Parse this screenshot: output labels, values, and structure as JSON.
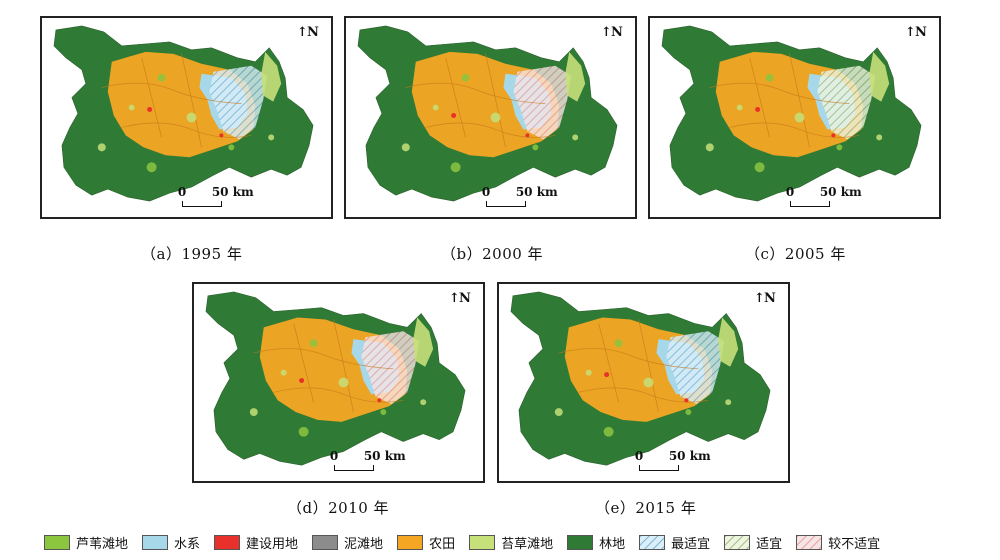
{
  "maps": [
    {
      "caption": "（a）1995 年",
      "north": "N",
      "scale_zero": "0",
      "scale_dist": "50 km"
    },
    {
      "caption": "（b）2000 年",
      "north": "N",
      "scale_zero": "0",
      "scale_dist": "50 km"
    },
    {
      "caption": "（c）2005 年",
      "north": "N",
      "scale_zero": "0",
      "scale_dist": "50 km"
    },
    {
      "caption": "（d）2010 年",
      "north": "N",
      "scale_zero": "0",
      "scale_dist": "50 km"
    },
    {
      "caption": "（e）2015 年",
      "north": "N",
      "scale_zero": "0",
      "scale_dist": "50 km"
    }
  ],
  "legend": [
    {
      "label": "芦苇滩地",
      "color": "#8cc63f",
      "pattern": "solid"
    },
    {
      "label": "水系",
      "color": "#a7d8ea",
      "pattern": "solid"
    },
    {
      "label": "建设用地",
      "color": "#e8312a",
      "pattern": "solid"
    },
    {
      "label": "泥滩地",
      "color": "#8c8c8c",
      "pattern": "solid"
    },
    {
      "label": "农田",
      "color": "#f5a623",
      "pattern": "solid"
    },
    {
      "label": "苔草滩地",
      "color": "#c6e07a",
      "pattern": "solid"
    },
    {
      "label": "林地",
      "color": "#2f7a35",
      "pattern": "solid"
    },
    {
      "label": "最适宜",
      "color": "#7ab6d9",
      "pattern": "hatch"
    },
    {
      "label": "适宜",
      "color": "#9fbf7a",
      "pattern": "hatch"
    },
    {
      "label": "较不适宜",
      "color": "#e7a1a1",
      "pattern": "hatch"
    }
  ]
}
